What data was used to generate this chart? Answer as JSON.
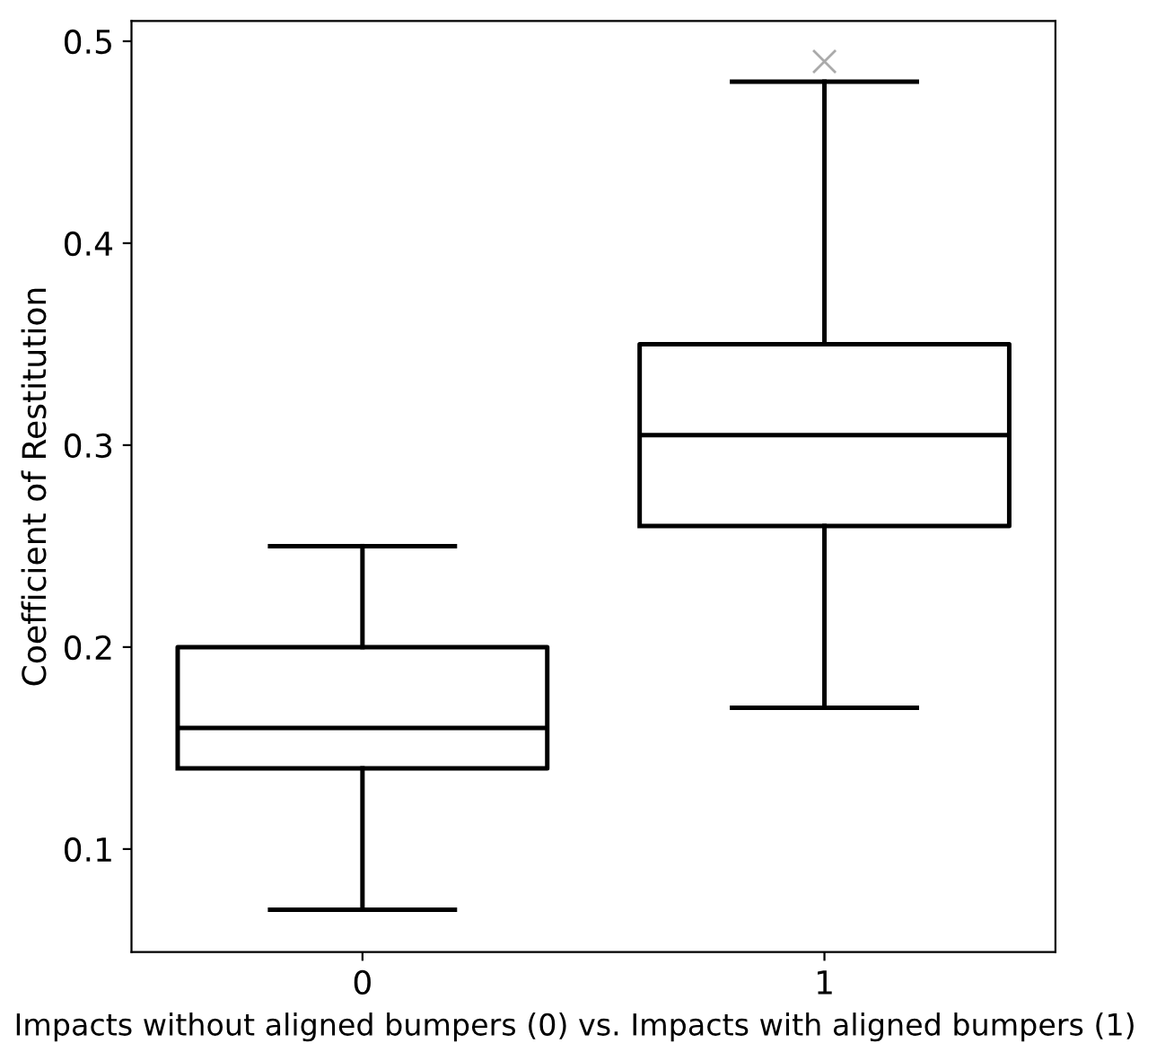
{
  "chart_data": {
    "type": "box",
    "xlabel": "Impacts without aligned bumpers (0) vs. Impacts with aligned bumpers (1)",
    "ylabel": "Coefficient of Restitution",
    "categories": [
      "0",
      "1"
    ],
    "series": [
      {
        "color": "#000000",
        "boxes": [
          {
            "low": 0.07,
            "q1": 0.14,
            "median": 0.16,
            "q3": 0.2,
            "high": 0.25
          },
          {
            "low": 0.17,
            "q1": 0.26,
            "median": 0.305,
            "q3": 0.35,
            "high": 0.48,
            "outliers": [
              0.49
            ]
          }
        ]
      }
    ],
    "ylim": [
      0.049,
      0.51
    ],
    "yticks": [
      0.1,
      0.2,
      0.3,
      0.4,
      0.5
    ],
    "grid": false,
    "legend": false
  }
}
